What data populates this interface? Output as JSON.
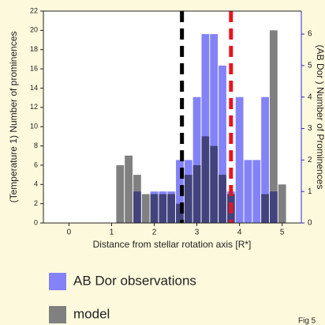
{
  "chart_data": {
    "type": "histogram",
    "ylabel": "(Temperature 1) Number of prominences",
    "y2label": "(AB Dor ) Number of Prominences",
    "xlabel": "Distance from stellar rotation axis [R*]",
    "bins": [
      1.1,
      1.3,
      1.5,
      1.7,
      1.9,
      2.1,
      2.3,
      2.5,
      2.7,
      2.9,
      3.1,
      3.3,
      3.5,
      3.7,
      3.9,
      4.1,
      4.3,
      4.5,
      4.7,
      4.9,
      5.1
    ],
    "series": [
      {
        "name": "model",
        "color": "#808080",
        "values": [
          6,
          7,
          5,
          3,
          3,
          3,
          3,
          2,
          5,
          6,
          9,
          8,
          5,
          3,
          0,
          0,
          0,
          3,
          20,
          4
        ]
      },
      {
        "name": "AB Dor observations",
        "color": "#8383f7",
        "axis": "y2",
        "values": [
          0,
          0,
          1,
          0,
          1,
          1,
          1,
          2,
          2,
          4,
          6,
          6,
          5,
          1,
          4,
          2,
          2,
          4,
          1,
          0
        ]
      }
    ],
    "legend_order": [
      1,
      0
    ],
    "vlines": [
      {
        "x": 2.65,
        "color": "#000000"
      },
      {
        "x": 3.8,
        "color": "#e8141e"
      }
    ],
    "xlim": [
      -0.6,
      5.45
    ],
    "xticks": [
      0,
      1,
      2,
      3,
      4,
      5
    ],
    "ylim": [
      0,
      22
    ],
    "yticks": [
      0,
      2,
      4,
      6,
      8,
      10,
      12,
      14,
      16,
      18,
      20,
      22
    ],
    "y2lim": [
      0,
      6.73
    ],
    "y2ticks": [
      0,
      1,
      2,
      3,
      4,
      5,
      6
    ],
    "y2color": "#2b2bd0",
    "figure_label": "Fig 5"
  }
}
